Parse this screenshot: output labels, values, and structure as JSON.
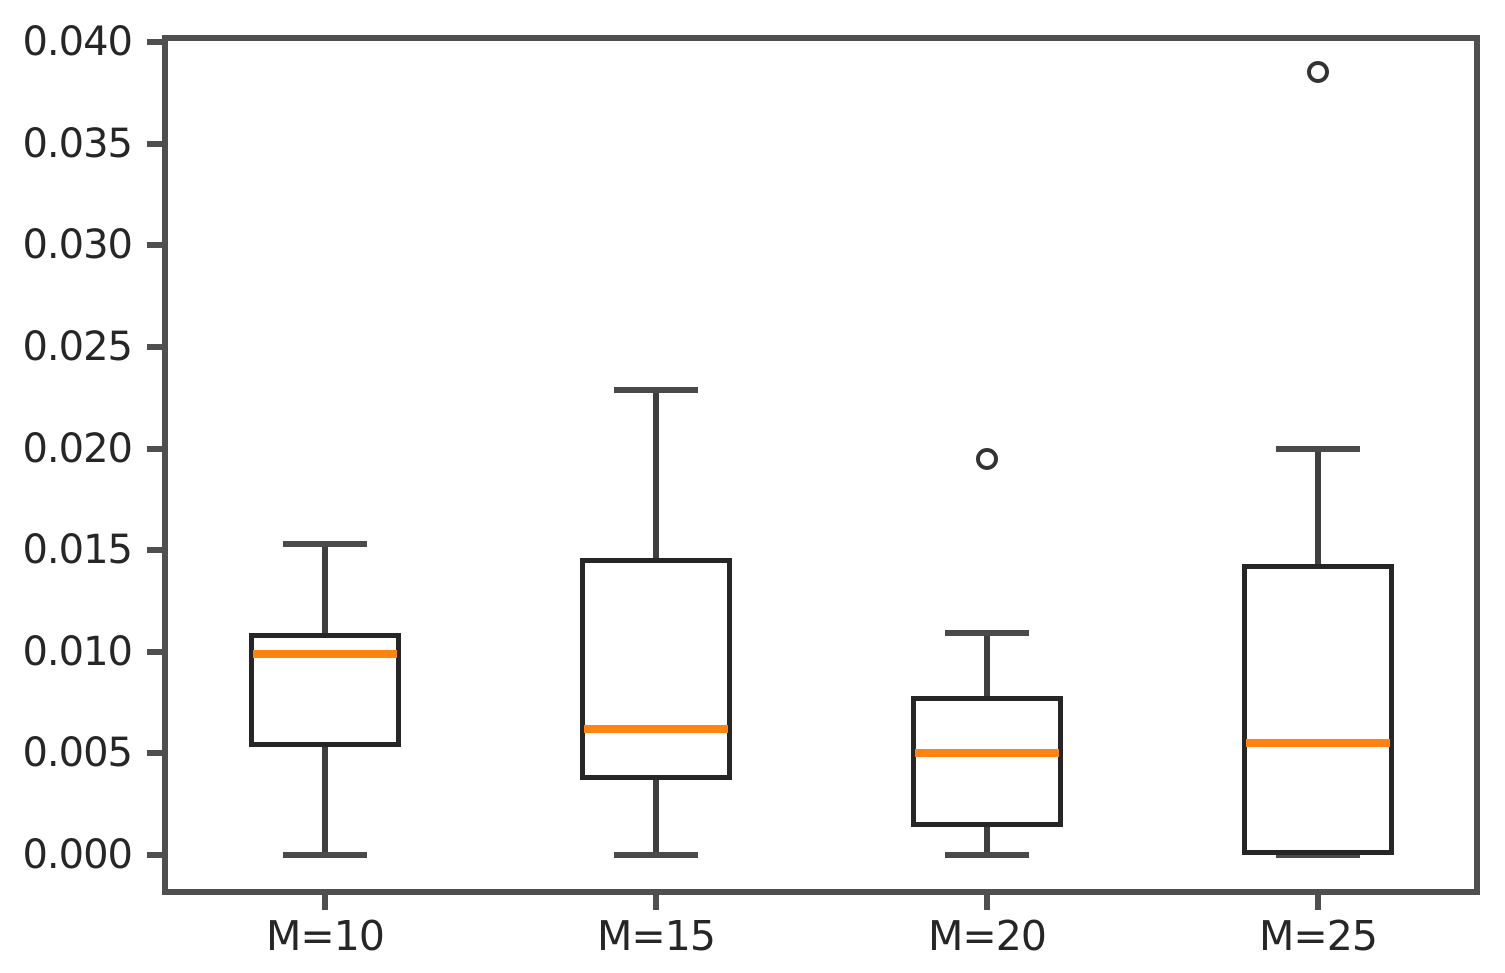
{
  "figure": {
    "background": "#ffffff"
  },
  "chart_data": {
    "type": "boxplot",
    "title": "",
    "xlabel": "",
    "ylabel": "",
    "categories": [
      "M=10",
      "M=15",
      "M=20",
      "M=25"
    ],
    "series": [
      {
        "label": "M=10",
        "whisker_low": 0.0,
        "q1": 0.0053,
        "median": 0.0099,
        "q3": 0.0109,
        "whisker_high": 0.0153,
        "outliers": []
      },
      {
        "label": "M=15",
        "whisker_low": 0.0,
        "q1": 0.0037,
        "median": 0.0062,
        "q3": 0.0146,
        "whisker_high": 0.0229,
        "outliers": []
      },
      {
        "label": "M=20",
        "whisker_low": 0.0,
        "q1": 0.0014,
        "median": 0.005,
        "q3": 0.0078,
        "whisker_high": 0.0109,
        "outliers": [
          0.0195
        ]
      },
      {
        "label": "M=25",
        "whisker_low": 0.0,
        "q1": 0.0,
        "median": 0.0055,
        "q3": 0.0143,
        "whisker_high": 0.02,
        "outliers": [
          0.0385
        ]
      }
    ],
    "y_ticks": [
      0.0,
      0.005,
      0.01,
      0.015,
      0.02,
      0.025,
      0.03,
      0.035,
      0.04
    ],
    "y_tick_labels": [
      "0.000",
      "0.005",
      "0.010",
      "0.015",
      "0.020",
      "0.025",
      "0.030",
      "0.035",
      "0.040"
    ],
    "ylim": [
      -0.002,
      0.0403
    ],
    "grid": false,
    "legend": null,
    "colors": {
      "median": "#ff830f",
      "box_edge": "#262626",
      "whisker": "#3f3f3f",
      "cap": "#4a4a4a",
      "spine": "#4f4f4f",
      "tick_label": "#262626",
      "outlier_edge": "#333333",
      "background": "#ffffff"
    }
  }
}
